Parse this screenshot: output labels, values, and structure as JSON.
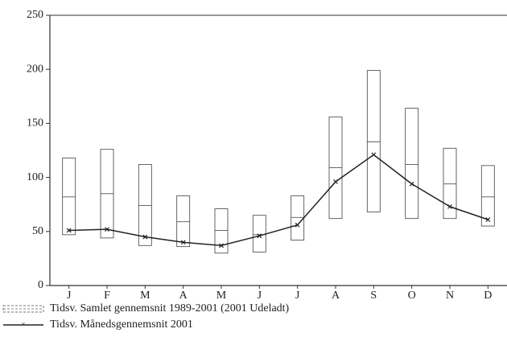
{
  "chart_data": {
    "type": "range-line",
    "categories": [
      "J",
      "F",
      "M",
      "A",
      "M",
      "J",
      "J",
      "A",
      "S",
      "O",
      "N",
      "D"
    ],
    "ylim": [
      0,
      250
    ],
    "yticks": [
      0,
      50,
      100,
      150,
      200,
      250
    ],
    "series": [
      {
        "name": "Tidsv. Samlet gennemsnit 1989-2001 (2001 Udeladt)",
        "color": "#555555",
        "low": [
          47,
          44,
          37,
          36,
          30,
          31,
          42,
          62,
          68,
          62,
          62,
          55
        ],
        "mid": [
          82,
          85,
          74,
          59,
          51,
          47,
          63,
          109,
          133,
          112,
          94,
          82
        ],
        "high": [
          118,
          126,
          112,
          83,
          71,
          65,
          83,
          156,
          199,
          164,
          127,
          111
        ]
      },
      {
        "name": "Tidsv. Månedsgennemsnit 2001",
        "color": "#222222",
        "values": [
          51,
          52,
          45,
          40,
          37,
          46,
          56,
          96,
          121,
          94,
          73,
          61
        ]
      }
    ]
  }
}
